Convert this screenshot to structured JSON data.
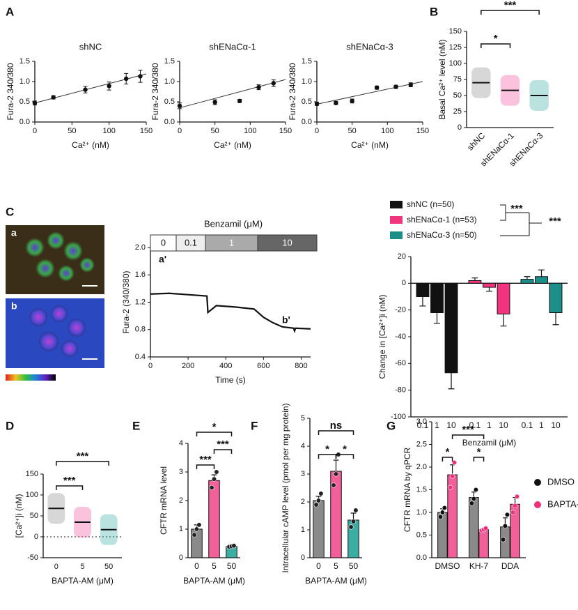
{
  "chart_data": [
    {
      "type": "scatter",
      "panel": "A",
      "title": "shNC",
      "x": [
        0,
        25,
        68,
        100,
        123,
        142
      ],
      "y": [
        0.47,
        0.61,
        0.8,
        0.89,
        1.07,
        1.13
      ],
      "errors": [
        0.05,
        0.04,
        0.08,
        0.1,
        0.13,
        0.15
      ],
      "fit": {
        "x": [
          0,
          150
        ],
        "y": [
          0.47,
          1.19
        ]
      },
      "color": "#111111",
      "xlim": [
        0,
        150
      ],
      "xticks": [
        0,
        50,
        100,
        150
      ],
      "ylim": [
        0,
        1.5
      ],
      "yticks": [
        {
          "value": 0,
          "label": "0.0"
        },
        0.5,
        {
          "value": 1,
          "label": "1.0"
        },
        1.5
      ],
      "xlabel": "Ca²⁺ (nM)",
      "ylabel": "Fura-2 340/380"
    },
    {
      "type": "scatter",
      "title": "shENaCα-1",
      "x": [
        0,
        50,
        85,
        112,
        133
      ],
      "y": [
        0.4,
        0.49,
        0.52,
        0.86,
        0.96
      ],
      "errors": [
        0.07,
        0.06,
        0.04,
        0.06,
        0.08
      ],
      "fit": {
        "x": [
          0,
          150
        ],
        "y": [
          0.35,
          1.05
        ]
      },
      "color": "#111111",
      "xlim": [
        0,
        150
      ],
      "xticks": [
        0,
        50,
        100,
        150
      ],
      "ylim": [
        0,
        1.5
      ],
      "yticks": [
        {
          "value": 0,
          "label": "0.0"
        },
        0.5,
        {
          "value": 1,
          "label": "1.0"
        },
        1.5
      ],
      "xlabel": "Ca²⁺ (nM)",
      "ylabel": "Fura-2 340/380"
    },
    {
      "type": "scatter",
      "title": "shENaCα-3",
      "x": [
        0,
        27,
        50,
        85,
        112,
        133
      ],
      "y": [
        0.45,
        0.47,
        0.52,
        0.85,
        0.87,
        0.92
      ],
      "errors": [
        0.04,
        0.04,
        0.05,
        0.04,
        0.04,
        0.05
      ],
      "fit": {
        "x": [
          0,
          150
        ],
        "y": [
          0.44,
          1.0
        ]
      },
      "color": "#111111",
      "xlim": [
        0,
        150
      ],
      "xticks": [
        0,
        50,
        100,
        150
      ],
      "ylim": [
        0,
        1.5
      ],
      "yticks": [
        {
          "value": 0,
          "label": "0.0"
        },
        0.5,
        {
          "value": 1,
          "label": "1.0"
        },
        1.5
      ],
      "xlabel": "Ca²⁺ (nM)",
      "ylabel": "Fura-2 340/380"
    },
    {
      "type": "strip",
      "panel": "B",
      "categories": [
        "shNC",
        "shENaCα-1",
        "shENaCα-3"
      ],
      "means": [
        70,
        58,
        50
      ],
      "colors": [
        "#8c8c8c",
        "#f0509a",
        "#3aaea2"
      ],
      "ylim": [
        0,
        150
      ],
      "yticks": [
        0,
        25,
        50,
        75,
        100,
        125,
        150
      ],
      "ylabel": "Basal Ca²⁺ level (nM)",
      "rotate_labels": true,
      "significance": [
        {
          "label": "*",
          "between": [
            "shNC",
            "shENaCα-1"
          ]
        },
        {
          "label": "***",
          "between": [
            "shNC",
            "shENaCα-3"
          ]
        }
      ]
    },
    {
      "type": "line",
      "panel": "C",
      "images": [
        "a",
        "b"
      ],
      "x": [
        0,
        100,
        200,
        300,
        305,
        350,
        450,
        550,
        600,
        650,
        700,
        760,
        765,
        770,
        850
      ],
      "y": [
        1.32,
        1.33,
        1.31,
        1.29,
        1.05,
        1.15,
        1.13,
        1.1,
        0.98,
        0.9,
        0.84,
        0.82,
        0.78,
        0.82,
        0.81
      ],
      "color": "#111111",
      "xlim": [
        0,
        850
      ],
      "xticks": [
        0,
        200,
        400,
        600,
        800
      ],
      "ylim": [
        0.4,
        2.0
      ],
      "yticks": [
        0.4,
        0.8,
        1.2,
        1.6,
        {
          "value": 2,
          "label": "2.0"
        }
      ],
      "xlabel": "Time (s)",
      "ylabel": "Fura-2 (340/380)",
      "header_title": "Benzamil (μM)",
      "header_labels": [
        "0",
        "0.1",
        "1",
        "10"
      ],
      "annotations": [
        "a'",
        "b'"
      ]
    },
    {
      "type": "bar",
      "cluster": "series",
      "categories": [
        "0.1",
        "1",
        "10"
      ],
      "series": [
        {
          "name": "shNC (n=50)",
          "color": "#111111",
          "values": [
            -10,
            -22,
            -67
          ],
          "errors": [
            7,
            8,
            12
          ]
        },
        {
          "name": "shENaCα-1 (n=53)",
          "color": "#f2347e",
          "values": [
            2,
            -3,
            -23
          ],
          "errors": [
            2,
            3,
            9
          ]
        },
        {
          "name": "shENaCα-3 (n=50)",
          "color": "#1c8f88",
          "values": [
            3,
            5,
            -22
          ],
          "errors": [
            2,
            5,
            9
          ]
        }
      ],
      "ylim": [
        -100,
        20
      ],
      "yticks": [
        -100,
        -80,
        -60,
        -40,
        -20,
        0,
        20
      ],
      "xlabel": "Benzamil (μM)",
      "ylabel": "Change in [Ca²⁺]i (nM)",
      "significance_labels": [
        "***",
        "***"
      ]
    },
    {
      "type": "strip",
      "panel": "D",
      "categories": [
        "0",
        "5",
        "50"
      ],
      "means": [
        68,
        35,
        17
      ],
      "colors": [
        "#8c8c8c",
        "#f0509a",
        "#3aaea2"
      ],
      "ylim": [
        -50,
        150
      ],
      "yticks": [
        -50,
        0,
        50,
        100,
        150
      ],
      "reference_line": 0,
      "xlabel": "BAPTA-AM (μM)",
      "ylabel": "[Ca²⁺]i (nM)",
      "significance": [
        {
          "label": "***",
          "between": [
            "0",
            "5"
          ]
        },
        {
          "label": "***",
          "between": [
            "0",
            "50"
          ]
        }
      ]
    },
    {
      "type": "bar",
      "panel": "E",
      "categories": [
        "0",
        "5",
        "50"
      ],
      "values": [
        1.0,
        2.7,
        0.4
      ],
      "errors": [
        0.15,
        0.2,
        0.03
      ],
      "points": [
        [
          0.8,
          1.0,
          1.15
        ],
        [
          2.45,
          2.75,
          3.0
        ],
        [
          0.38,
          0.4,
          0.42
        ]
      ],
      "colors": [
        "#8a8a8a",
        "#f2609a",
        "#3aaea2"
      ],
      "ylim": [
        0,
        4
      ],
      "yticks": [
        0,
        1,
        2,
        3,
        4
      ],
      "xlabel": "BAPTA-AM (μM)",
      "ylabel": "CFTR mRNA level",
      "significance": [
        {
          "label": "*",
          "between": [
            "0",
            "50"
          ]
        },
        {
          "label": "***",
          "between": [
            "0",
            "5"
          ]
        },
        {
          "label": "***",
          "between": [
            "5",
            "50"
          ]
        }
      ]
    },
    {
      "type": "bar",
      "panel": "F",
      "categories": [
        "0",
        "5",
        "50"
      ],
      "values": [
        2.05,
        3.1,
        1.35
      ],
      "errors": [
        0.15,
        0.4,
        0.25
      ],
      "points": [
        [
          1.9,
          2.05,
          2.3
        ],
        [
          2.6,
          3.0,
          3.7
        ],
        [
          1.1,
          1.3,
          1.7
        ]
      ],
      "colors": [
        "#8a8a8a",
        "#f2609a",
        "#3aaea2"
      ],
      "ylim": [
        0,
        5
      ],
      "yticks": [
        0,
        1,
        2,
        3,
        4,
        5
      ],
      "xlabel": "BAPTA-AM (μM)",
      "ylabel": "Intracellular cAMP level (pmol per mg protein)",
      "significance": [
        {
          "label": "ns",
          "between": [
            "0",
            "50"
          ]
        },
        {
          "label": "*",
          "between": [
            "0",
            "5"
          ]
        },
        {
          "label": "*",
          "between": [
            "5",
            "50"
          ]
        }
      ]
    },
    {
      "type": "bar",
      "panel": "G",
      "categories": [
        "DMSO",
        "KH-7",
        "DDA"
      ],
      "series": [
        {
          "name": "DMSO",
          "color": "#8a8a8a",
          "point_color": "#111111",
          "values": [
            1.0,
            1.33,
            0.68
          ],
          "errors": [
            0.08,
            0.12,
            0.2
          ],
          "points": [
            [
              0.9,
              1.0,
              1.1
            ],
            [
              1.2,
              1.3,
              1.5
            ],
            [
              0.4,
              0.7,
              0.95
            ]
          ]
        },
        {
          "name": "BAPTA-AM",
          "color": "#f2609a",
          "point_color": "#f0307a",
          "values": [
            1.83,
            0.62,
            1.18
          ],
          "errors": [
            0.22,
            0.03,
            0.15
          ],
          "points": [
            [
              1.55,
              1.8,
              2.1
            ],
            [
              0.6,
              0.62,
              0.65
            ],
            [
              1.0,
              1.15,
              1.35
            ]
          ]
        }
      ],
      "ylim": [
        0,
        3
      ],
      "yticks": [
        {
          "value": 0,
          "label": "0.0"
        },
        0.5,
        {
          "value": 1,
          "label": "1.0"
        },
        1.5,
        {
          "value": 2,
          "label": "2.0"
        },
        2.5,
        {
          "value": 3,
          "label": "3.0"
        }
      ],
      "ylabel": "CFTR mRNA by qPCR",
      "significance": [
        {
          "label": "*",
          "between": [
            [
              "DMSO",
              "DMSO"
            ],
            [
              "DMSO",
              "BAPTA-AM"
            ]
          ]
        },
        {
          "label": "*",
          "between": [
            [
              "KH-7",
              "DMSO"
            ],
            [
              "KH-7",
              "BAPTA-AM"
            ]
          ]
        },
        {
          "label": "***",
          "between": [
            [
              "DMSO",
              "BAPTA-AM"
            ],
            [
              "KH-7",
              "BAPTA-AM"
            ]
          ]
        }
      ]
    }
  ]
}
